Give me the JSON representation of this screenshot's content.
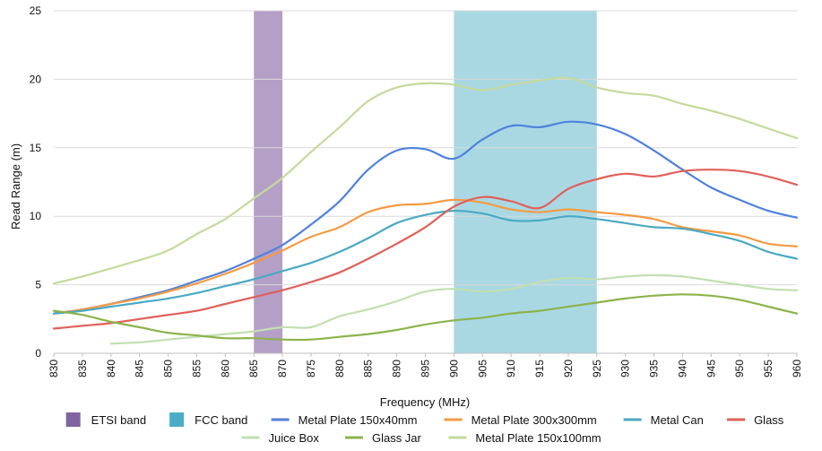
{
  "chart_data": {
    "type": "line",
    "xlabel": "Frequency (MHz)",
    "ylabel": "Read Range (m)",
    "xlim": [
      830,
      960
    ],
    "ylim": [
      0,
      25
    ],
    "x_ticks": [
      830,
      835,
      840,
      845,
      850,
      855,
      860,
      865,
      870,
      875,
      880,
      885,
      890,
      895,
      900,
      905,
      910,
      915,
      920,
      925,
      930,
      935,
      940,
      945,
      950,
      955,
      960
    ],
    "y_ticks": [
      0,
      5,
      10,
      15,
      20,
      25
    ],
    "grid": "horizontal",
    "legend_position": "bottom",
    "bands": [
      {
        "name": "ETSI band",
        "x0": 865,
        "x1": 870,
        "color": "#b49fc7"
      },
      {
        "name": "FCC  band",
        "x0": 900,
        "x1": 925,
        "color": "#a9d8e3"
      }
    ],
    "legend_swatches": [
      {
        "name": "ETSI band",
        "color": "#8064a2"
      },
      {
        "name": "FCC  band",
        "color": "#4bacc6"
      }
    ],
    "series": [
      {
        "name": "Metal Plate 150x40mm",
        "color": "#4f81dd",
        "width": 2.2,
        "x": [
          830,
          835,
          840,
          845,
          850,
          855,
          860,
          865,
          870,
          875,
          880,
          885,
          890,
          895,
          900,
          905,
          910,
          915,
          920,
          925,
          930,
          935,
          940,
          945,
          950,
          955,
          960
        ],
        "y": [
          2.9,
          3.2,
          3.6,
          4.1,
          4.6,
          5.3,
          6.0,
          6.9,
          7.9,
          9.4,
          11.1,
          13.4,
          14.8,
          14.9,
          14.2,
          15.6,
          16.6,
          16.5,
          16.9,
          16.7,
          16.0,
          14.8,
          13.4,
          12.1,
          11.2,
          10.4,
          9.9
        ]
      },
      {
        "name": "Metal Plate 300x300mm",
        "color": "#f59a42",
        "width": 2.2,
        "x": [
          830,
          835,
          840,
          845,
          850,
          855,
          860,
          865,
          870,
          875,
          880,
          885,
          890,
          895,
          900,
          905,
          910,
          915,
          920,
          925,
          930,
          935,
          940,
          945,
          950,
          955,
          960
        ],
        "y": [
          2.9,
          3.2,
          3.6,
          4.0,
          4.5,
          5.1,
          5.8,
          6.6,
          7.5,
          8.5,
          9.2,
          10.3,
          10.8,
          10.9,
          11.2,
          11.0,
          10.5,
          10.3,
          10.5,
          10.3,
          10.1,
          9.8,
          9.2,
          8.9,
          8.6,
          8.0,
          7.8
        ]
      },
      {
        "name": "Metal Can",
        "color": "#4aa9c3",
        "width": 2.2,
        "x": [
          830,
          835,
          840,
          845,
          850,
          855,
          860,
          865,
          870,
          875,
          880,
          885,
          890,
          895,
          900,
          905,
          910,
          915,
          920,
          925,
          930,
          935,
          940,
          945,
          950,
          955,
          960
        ],
        "y": [
          2.9,
          3.1,
          3.4,
          3.7,
          4.0,
          4.4,
          4.9,
          5.4,
          6.0,
          6.6,
          7.4,
          8.4,
          9.5,
          10.1,
          10.4,
          10.2,
          9.7,
          9.7,
          10.0,
          9.8,
          9.5,
          9.2,
          9.1,
          8.7,
          8.2,
          7.4,
          6.9
        ]
      },
      {
        "name": "Glass",
        "color": "#e0605a",
        "width": 2.2,
        "x": [
          830,
          835,
          840,
          845,
          850,
          855,
          860,
          865,
          870,
          875,
          880,
          885,
          890,
          895,
          900,
          905,
          910,
          915,
          920,
          925,
          930,
          935,
          940,
          945,
          950,
          955,
          960
        ],
        "y": [
          1.8,
          2.0,
          2.2,
          2.5,
          2.8,
          3.1,
          3.6,
          4.1,
          4.6,
          5.2,
          5.9,
          6.9,
          8.0,
          9.2,
          10.7,
          11.4,
          11.1,
          10.6,
          12.0,
          12.7,
          13.1,
          12.9,
          13.3,
          13.4,
          13.3,
          12.9,
          12.3
        ]
      },
      {
        "name": "Juice Box",
        "color": "#c2dfb0",
        "width": 2.2,
        "x": [
          840,
          845,
          850,
          855,
          860,
          865,
          870,
          875,
          880,
          885,
          890,
          895,
          900,
          905,
          910,
          915,
          920,
          925,
          930,
          935,
          940,
          945,
          950,
          955,
          960
        ],
        "y": [
          0.7,
          0.8,
          1.0,
          1.2,
          1.4,
          1.6,
          1.9,
          1.9,
          2.7,
          3.2,
          3.8,
          4.5,
          4.7,
          4.5,
          4.7,
          5.2,
          5.5,
          5.4,
          5.6,
          5.7,
          5.6,
          5.3,
          5.0,
          4.7,
          4.6
        ]
      },
      {
        "name": "Glass Jar",
        "color": "#8cb34b",
        "width": 2.2,
        "x": [
          830,
          835,
          840,
          845,
          850,
          855,
          860,
          865,
          870,
          875,
          880,
          885,
          890,
          895,
          900,
          905,
          910,
          915,
          920,
          925,
          930,
          935,
          940,
          945,
          950,
          955,
          960
        ],
        "y": [
          3.1,
          2.8,
          2.3,
          1.9,
          1.5,
          1.3,
          1.1,
          1.1,
          1.0,
          1.0,
          1.2,
          1.4,
          1.7,
          2.1,
          2.4,
          2.6,
          2.9,
          3.1,
          3.4,
          3.7,
          4.0,
          4.2,
          4.3,
          4.2,
          3.9,
          3.4,
          2.9
        ]
      },
      {
        "name": "Metal Plate 150x100mm",
        "color": "#c5da9c",
        "width": 2.2,
        "x": [
          830,
          835,
          840,
          845,
          850,
          855,
          860,
          865,
          870,
          875,
          880,
          885,
          890,
          895,
          900,
          905,
          910,
          915,
          920,
          925,
          930,
          935,
          940,
          945,
          950,
          955,
          960
        ],
        "y": [
          5.1,
          5.6,
          6.2,
          6.8,
          7.5,
          8.7,
          9.8,
          11.3,
          12.8,
          14.7,
          16.5,
          18.4,
          19.4,
          19.7,
          19.6,
          19.2,
          19.6,
          19.9,
          20.1,
          19.4,
          19.0,
          18.8,
          18.2,
          17.7,
          17.1,
          16.4,
          15.7
        ]
      }
    ]
  }
}
